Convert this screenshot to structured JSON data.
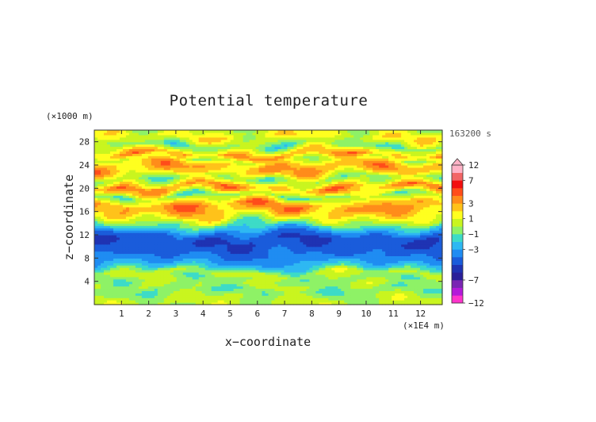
{
  "chart_data": {
    "type": "heatmap",
    "title": "Potential temperature",
    "xlabel": "x−coordinate",
    "ylabel": "z−coordinate",
    "x_unit": "(×1E4 m)",
    "y_unit": "(×1000 m)",
    "time_label": "163200 s",
    "xlim": [
      0,
      12.8
    ],
    "ylim": [
      0,
      30
    ],
    "x_ticks": [
      {
        "value": 1,
        "label": "1"
      },
      {
        "value": 2,
        "label": "2"
      },
      {
        "value": 3,
        "label": "3"
      },
      {
        "value": 4,
        "label": "4"
      },
      {
        "value": 5,
        "label": "5"
      },
      {
        "value": 6,
        "label": "6"
      },
      {
        "value": 7,
        "label": "7"
      },
      {
        "value": 8,
        "label": "8"
      },
      {
        "value": 9,
        "label": "9"
      },
      {
        "value": 10,
        "label": "10"
      },
      {
        "value": 11,
        "label": "11"
      },
      {
        "value": 12,
        "label": "12"
      }
    ],
    "y_ticks": [
      {
        "value": 4,
        "label": "4"
      },
      {
        "value": 8,
        "label": "8"
      },
      {
        "value": 12,
        "label": "12"
      },
      {
        "value": 16,
        "label": "16"
      },
      {
        "value": 20,
        "label": "20"
      },
      {
        "value": 24,
        "label": "24"
      },
      {
        "value": 28,
        "label": "28"
      }
    ],
    "vertical_profile": [
      {
        "z": 0.0,
        "value": 0.2
      },
      {
        "z": 1.0,
        "value": 0.3
      },
      {
        "z": 2.5,
        "value": -0.8
      },
      {
        "z": 3.5,
        "value": 0.1
      },
      {
        "z": 4.5,
        "value": -0.5
      },
      {
        "z": 5.5,
        "value": 0.4
      },
      {
        "z": 6.3,
        "value": -1.5
      },
      {
        "z": 7.0,
        "value": -2.6
      },
      {
        "z": 7.6,
        "value": -3.4
      },
      {
        "z": 8.5,
        "value": -4.0
      },
      {
        "z": 10.0,
        "value": -4.7
      },
      {
        "z": 11.2,
        "value": -5.0
      },
      {
        "z": 12.3,
        "value": -4.0
      },
      {
        "z": 13.0,
        "value": -2.6
      },
      {
        "z": 13.8,
        "value": -1.0
      },
      {
        "z": 14.6,
        "value": 0.6
      },
      {
        "z": 15.4,
        "value": 1.8
      },
      {
        "z": 16.3,
        "value": 2.9
      },
      {
        "z": 17.2,
        "value": 3.4
      },
      {
        "z": 18.0,
        "value": 1.4
      },
      {
        "z": 18.8,
        "value": -0.6
      },
      {
        "z": 19.6,
        "value": 2.2
      },
      {
        "z": 20.3,
        "value": 3.1
      },
      {
        "z": 21.0,
        "value": 1.0
      },
      {
        "z": 21.8,
        "value": -0.4
      },
      {
        "z": 22.6,
        "value": 1.8
      },
      {
        "z": 23.4,
        "value": 2.9
      },
      {
        "z": 24.2,
        "value": 2.6
      },
      {
        "z": 25.0,
        "value": 0.8
      },
      {
        "z": 25.8,
        "value": 3.0
      },
      {
        "z": 26.6,
        "value": 1.2
      },
      {
        "z": 27.4,
        "value": -0.8
      },
      {
        "z": 28.3,
        "value": 0.6
      },
      {
        "z": 29.2,
        "value": 1.5
      },
      {
        "z": 30.0,
        "value": 0.4
      }
    ],
    "colorbar": {
      "tick_labels": [
        {
          "value": 12,
          "label": "12"
        },
        {
          "value": 7,
          "label": "7"
        },
        {
          "value": 3,
          "label": "3"
        },
        {
          "value": 1,
          "label": "1"
        },
        {
          "value": -1,
          "label": "−1"
        },
        {
          "value": -3,
          "label": "−3"
        },
        {
          "value": -7,
          "label": "−7"
        },
        {
          "value": -12,
          "label": "−12"
        }
      ],
      "bands": [
        {
          "from": -12,
          "to": -10,
          "color": "#ff33cc"
        },
        {
          "from": -10,
          "to": -8,
          "color": "#b31ad9"
        },
        {
          "from": -8,
          "to": -7,
          "color": "#7a26b3"
        },
        {
          "from": -7,
          "to": -6,
          "color": "#2a1f99"
        },
        {
          "from": -6,
          "to": -5,
          "color": "#1f33b3"
        },
        {
          "from": -5,
          "to": -4,
          "color": "#1a5cdb"
        },
        {
          "from": -4,
          "to": -3,
          "color": "#1f8cf2"
        },
        {
          "from": -3,
          "to": -2,
          "color": "#2eb8f2"
        },
        {
          "from": -2,
          "to": -1,
          "color": "#3ddbc7"
        },
        {
          "from": -1,
          "to": 0,
          "color": "#8ef266"
        },
        {
          "from": 0,
          "to": 1,
          "color": "#c9f51f"
        },
        {
          "from": 1,
          "to": 2,
          "color": "#ffff1f"
        },
        {
          "from": 2,
          "to": 3,
          "color": "#ffc21a"
        },
        {
          "from": 3,
          "to": 4,
          "color": "#ff8c1a"
        },
        {
          "from": 4,
          "to": 5,
          "color": "#ff4d1a"
        },
        {
          "from": 5,
          "to": 7,
          "color": "#f20f0f"
        },
        {
          "from": 7,
          "to": 9,
          "color": "#f26666"
        },
        {
          "from": 9,
          "to": 12,
          "color": "#ffb3c7"
        }
      ]
    }
  }
}
